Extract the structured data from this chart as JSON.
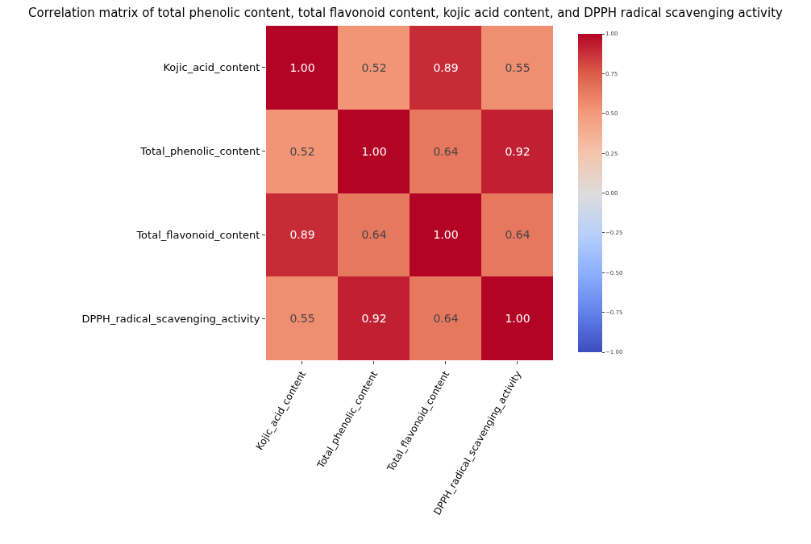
{
  "chart_data": {
    "type": "heatmap",
    "title": "Correlation matrix of total phenolic content, total flavonoid content, kojic acid content, and DPPH radical scavenging activity",
    "categories": [
      "Kojic_acid_content",
      "Total_phenolic_content",
      "Total_flavonoid_content",
      "DPPH_radical_scavenging_activity"
    ],
    "y_categories": [
      "Kojic_acid_content",
      "Total_phenolic_content",
      "Total_flavonoid_content",
      "DPPH_radical_scavenging_activity"
    ],
    "cells": [
      [
        1,
        0.52,
        0.89,
        0.55
      ],
      [
        0.52,
        1,
        0.64,
        0.92
      ],
      [
        0.89,
        0.64,
        1,
        0.64
      ],
      [
        0.55,
        0.92,
        0.64,
        1
      ]
    ],
    "cell_labels": [
      [
        "1.00",
        "0.52",
        "0.89",
        "0.55"
      ],
      [
        "0.52",
        "1.00",
        "0.64",
        "0.92"
      ],
      [
        "0.89",
        "0.64",
        "1.00",
        "0.64"
      ],
      [
        "0.55",
        "0.92",
        "0.64",
        "1.00"
      ]
    ],
    "clim": [
      -1,
      1
    ],
    "cticks": [
      {
        "value": -1,
        "label": "−1.00"
      },
      {
        "value": -0.75,
        "label": "−0.75"
      },
      {
        "value": -0.5,
        "label": "−0.50"
      },
      {
        "value": -0.25,
        "label": "−0.25"
      },
      {
        "value": 0,
        "label": "0.00"
      },
      {
        "value": 0.25,
        "label": "0.25"
      },
      {
        "value": 0.5,
        "label": "0.50"
      },
      {
        "value": 0.75,
        "label": "0.75"
      },
      {
        "value": 1,
        "label": "1.00"
      }
    ]
  }
}
